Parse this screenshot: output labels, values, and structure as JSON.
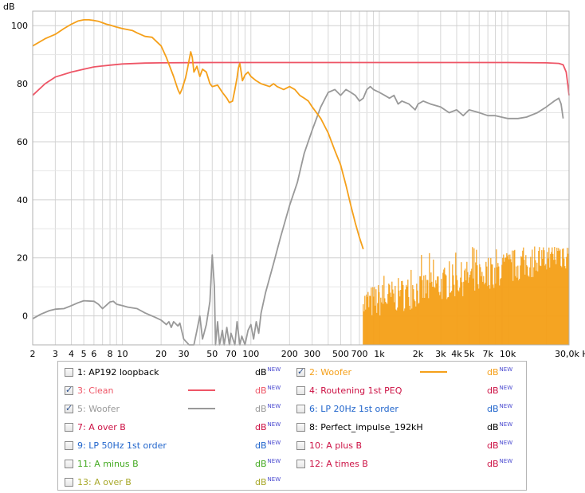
{
  "chart_data": {
    "type": "line",
    "ylabel": "dB",
    "xscale": "log",
    "xlim": [
      2,
      30000
    ],
    "ylim": [
      -10,
      105
    ],
    "grid": true,
    "xticks": [
      {
        "v": 2,
        "label": "2"
      },
      {
        "v": 3,
        "label": "3"
      },
      {
        "v": 4,
        "label": "4"
      },
      {
        "v": 5,
        "label": "5"
      },
      {
        "v": 6,
        "label": "6"
      },
      {
        "v": 8,
        "label": "8"
      },
      {
        "v": 10,
        "label": "10"
      },
      {
        "v": 20,
        "label": "20"
      },
      {
        "v": 30,
        "label": "30"
      },
      {
        "v": 50,
        "label": "50"
      },
      {
        "v": 70,
        "label": "70"
      },
      {
        "v": 100,
        "label": "100"
      },
      {
        "v": 200,
        "label": "200"
      },
      {
        "v": 300,
        "label": "300"
      },
      {
        "v": 500,
        "label": "500"
      },
      {
        "v": 700,
        "label": "700"
      },
      {
        "v": 1000,
        "label": "1k"
      },
      {
        "v": 2000,
        "label": "2k"
      },
      {
        "v": 3000,
        "label": "3k"
      },
      {
        "v": 4000,
        "label": "4k"
      },
      {
        "v": 5000,
        "label": "5k"
      },
      {
        "v": 7000,
        "label": "7k"
      },
      {
        "v": 10000,
        "label": "10k"
      },
      {
        "v": 30000,
        "label": "30,0k Hz"
      }
    ],
    "yticks": [
      {
        "v": 0,
        "label": "0"
      },
      {
        "v": 20,
        "label": "20"
      },
      {
        "v": 40,
        "label": "40"
      },
      {
        "v": 60,
        "label": "60"
      },
      {
        "v": 80,
        "label": "80"
      },
      {
        "v": 100,
        "label": "100"
      }
    ],
    "series": [
      {
        "name": "3: Clean",
        "color": "#ee5566",
        "points": [
          [
            2,
            76
          ],
          [
            2.5,
            80
          ],
          [
            3,
            82.3
          ],
          [
            4,
            84
          ],
          [
            5,
            85
          ],
          [
            6,
            85.8
          ],
          [
            8,
            86.4
          ],
          [
            10,
            86.8
          ],
          [
            15,
            87.1
          ],
          [
            20,
            87.2
          ],
          [
            50,
            87.3
          ],
          [
            100,
            87.3
          ],
          [
            1000,
            87.3
          ],
          [
            10000,
            87.3
          ],
          [
            20000,
            87.2
          ],
          [
            25000,
            87
          ],
          [
            27000,
            86.5
          ],
          [
            28500,
            84
          ],
          [
            29500,
            79
          ],
          [
            30000,
            76
          ]
        ]
      },
      {
        "name": "5: Woofer",
        "color": "#999999",
        "points": [
          [
            2,
            -1
          ],
          [
            2.3,
            0.5
          ],
          [
            2.7,
            1.8
          ],
          [
            3,
            2.3
          ],
          [
            3.5,
            2.5
          ],
          [
            4,
            3.5
          ],
          [
            4.5,
            4.5
          ],
          [
            5,
            5.2
          ],
          [
            6,
            5
          ],
          [
            6.5,
            4
          ],
          [
            7,
            2.5
          ],
          [
            8,
            4.8
          ],
          [
            8.5,
            5
          ],
          [
            9,
            4
          ],
          [
            10,
            3.5
          ],
          [
            11,
            3
          ],
          [
            13,
            2.5
          ],
          [
            15,
            1
          ],
          [
            18,
            -0.5
          ],
          [
            20,
            -1.5
          ],
          [
            22,
            -3
          ],
          [
            23,
            -2
          ],
          [
            24,
            -4
          ],
          [
            25,
            -2
          ],
          [
            27,
            -3.5
          ],
          [
            28,
            -2.5
          ],
          [
            30,
            -8
          ],
          [
            33,
            -10
          ],
          [
            36,
            -10
          ],
          [
            38,
            -5
          ],
          [
            40,
            0
          ],
          [
            42,
            -8
          ],
          [
            45,
            -3
          ],
          [
            48,
            5
          ],
          [
            50,
            21
          ],
          [
            52,
            10
          ],
          [
            53,
            -10
          ],
          [
            55,
            -2
          ],
          [
            57,
            -10
          ],
          [
            60,
            -5
          ],
          [
            62,
            -10
          ],
          [
            65,
            -4
          ],
          [
            68,
            -10
          ],
          [
            70,
            -6
          ],
          [
            75,
            -10
          ],
          [
            78,
            -2
          ],
          [
            82,
            -10
          ],
          [
            85,
            -7
          ],
          [
            90,
            -10
          ],
          [
            95,
            -5
          ],
          [
            100,
            -3
          ],
          [
            105,
            -8
          ],
          [
            110,
            -2
          ],
          [
            115,
            -6
          ],
          [
            120,
            1
          ],
          [
            130,
            8
          ],
          [
            150,
            18
          ],
          [
            170,
            27
          ],
          [
            200,
            38
          ],
          [
            230,
            46
          ],
          [
            260,
            56
          ],
          [
            300,
            64
          ],
          [
            350,
            72
          ],
          [
            400,
            77
          ],
          [
            450,
            78
          ],
          [
            500,
            76
          ],
          [
            550,
            78
          ],
          [
            600,
            77
          ],
          [
            650,
            76
          ],
          [
            700,
            74
          ],
          [
            750,
            75
          ],
          [
            800,
            78
          ],
          [
            850,
            79
          ],
          [
            900,
            78
          ],
          [
            1000,
            77
          ],
          [
            1100,
            76
          ],
          [
            1200,
            75
          ],
          [
            1300,
            76
          ],
          [
            1400,
            73
          ],
          [
            1500,
            74
          ],
          [
            1700,
            73
          ],
          [
            1900,
            71
          ],
          [
            2000,
            73
          ],
          [
            2200,
            74
          ],
          [
            2500,
            73
          ],
          [
            3000,
            72
          ],
          [
            3500,
            70
          ],
          [
            4000,
            71
          ],
          [
            4500,
            69
          ],
          [
            5000,
            71
          ],
          [
            6000,
            70
          ],
          [
            7000,
            69
          ],
          [
            8000,
            69
          ],
          [
            10000,
            68
          ],
          [
            12000,
            68
          ],
          [
            14000,
            68.5
          ],
          [
            17000,
            70
          ],
          [
            20000,
            72
          ],
          [
            23000,
            74
          ],
          [
            25000,
            75
          ],
          [
            26000,
            73
          ],
          [
            27000,
            68
          ]
        ]
      },
      {
        "name": "2: Woofer",
        "color": "#f5a01a",
        "points": [
          [
            2,
            93
          ],
          [
            2.5,
            95.5
          ],
          [
            3,
            97
          ],
          [
            3.5,
            99
          ],
          [
            4,
            100.5
          ],
          [
            4.5,
            101.6
          ],
          [
            5,
            102
          ],
          [
            5.5,
            102
          ],
          [
            6,
            101.8
          ],
          [
            6.5,
            101.5
          ],
          [
            7,
            101
          ],
          [
            7.5,
            100.5
          ],
          [
            8,
            100.2
          ],
          [
            9,
            99.5
          ],
          [
            10,
            99
          ],
          [
            12,
            98.3
          ],
          [
            13,
            97.5
          ],
          [
            15,
            96.3
          ],
          [
            17,
            96
          ],
          [
            20,
            93
          ],
          [
            22,
            89
          ],
          [
            25,
            82.5
          ],
          [
            27,
            78
          ],
          [
            28,
            76.5
          ],
          [
            29,
            78
          ],
          [
            30,
            80
          ],
          [
            31,
            82
          ],
          [
            32,
            85
          ],
          [
            33,
            88
          ],
          [
            34,
            91
          ],
          [
            35,
            89
          ],
          [
            36,
            84
          ],
          [
            37,
            85
          ],
          [
            38,
            86
          ],
          [
            40,
            82.5
          ],
          [
            42,
            85
          ],
          [
            45,
            84
          ],
          [
            48,
            80
          ],
          [
            50,
            79
          ],
          [
            55,
            79.5
          ],
          [
            60,
            77
          ],
          [
            65,
            75
          ],
          [
            68,
            73.5
          ],
          [
            72,
            74
          ],
          [
            75,
            78
          ],
          [
            78,
            82
          ],
          [
            80,
            85.5
          ],
          [
            82,
            87
          ],
          [
            84,
            84
          ],
          [
            86,
            81
          ],
          [
            90,
            83
          ],
          [
            95,
            84
          ],
          [
            100,
            82.5
          ],
          [
            110,
            81
          ],
          [
            120,
            80
          ],
          [
            140,
            79
          ],
          [
            150,
            80
          ],
          [
            160,
            79
          ],
          [
            180,
            78
          ],
          [
            200,
            79
          ],
          [
            220,
            78
          ],
          [
            240,
            76
          ],
          [
            260,
            75
          ],
          [
            280,
            74
          ],
          [
            300,
            72
          ],
          [
            350,
            68
          ],
          [
            400,
            63
          ],
          [
            450,
            57
          ],
          [
            500,
            52
          ],
          [
            550,
            45
          ],
          [
            600,
            38
          ],
          [
            650,
            32
          ],
          [
            700,
            27
          ],
          [
            750,
            23
          ]
        ]
      }
    ],
    "noise": {
      "series": "2: Woofer",
      "color": "#f5a01a",
      "x_start": 750,
      "x_end": 30000,
      "floor": -10,
      "top_start": 4,
      "top_end": 22,
      "top_max": 24
    }
  },
  "legend": {
    "items": [
      {
        "label": "1: AP192 loopback",
        "checked": false,
        "color": "#000000",
        "line": "",
        "db": "dB",
        "new": "NEW",
        "db_color": "#000000"
      },
      {
        "label": "2: Woofer",
        "checked": true,
        "color": "#f5a01a",
        "line": "#f5a01a",
        "db": "dB",
        "new": "NEW",
        "db_color": "#f5a01a"
      },
      {
        "label": "3: Clean",
        "checked": true,
        "color": "#ee5566",
        "line": "#ee5566",
        "db": "dB",
        "new": "NEW",
        "db_color": "#ee5566"
      },
      {
        "label": "4: Routening 1st PEQ",
        "checked": false,
        "color": "#cc1144",
        "line": "",
        "db": "dB",
        "new": "NEW",
        "db_color": "#cc1144"
      },
      {
        "label": "5: Woofer",
        "checked": true,
        "color": "#999999",
        "line": "#999999",
        "db": "dB",
        "new": "NEW",
        "db_color": "#999999"
      },
      {
        "label": "6: LP 20Hz 1st order",
        "checked": false,
        "color": "#2266cc",
        "line": "",
        "db": "dB",
        "new": "NEW",
        "db_color": "#2266cc"
      },
      {
        "label": "7: A over B",
        "checked": false,
        "color": "#cc1144",
        "line": "",
        "db": "dB",
        "new": "NEW",
        "db_color": "#cc1144"
      },
      {
        "label": "8: Perfect_impulse_192kH",
        "checked": false,
        "color": "#000000",
        "line": "",
        "db": "dB",
        "new": "NEW",
        "db_color": "#000000"
      },
      {
        "label": "9: LP 50Hz 1st order",
        "checked": false,
        "color": "#2266cc",
        "line": "",
        "db": "dB",
        "new": "NEW",
        "db_color": "#2266cc"
      },
      {
        "label": "10: A plus B",
        "checked": false,
        "color": "#cc1144",
        "line": "",
        "db": "dB",
        "new": "NEW",
        "db_color": "#cc1144"
      },
      {
        "label": "11: A minus B",
        "checked": false,
        "color": "#44aa22",
        "line": "",
        "db": "dB",
        "new": "NEW",
        "db_color": "#44aa22"
      },
      {
        "label": "12: A times B",
        "checked": false,
        "color": "#cc1144",
        "line": "",
        "db": "dB",
        "new": "NEW",
        "db_color": "#cc1144"
      },
      {
        "label": "13: A over B",
        "checked": false,
        "color": "#a8a82a",
        "line": "",
        "db": "dB",
        "new": "NEW",
        "db_color": "#a8a82a"
      }
    ]
  }
}
